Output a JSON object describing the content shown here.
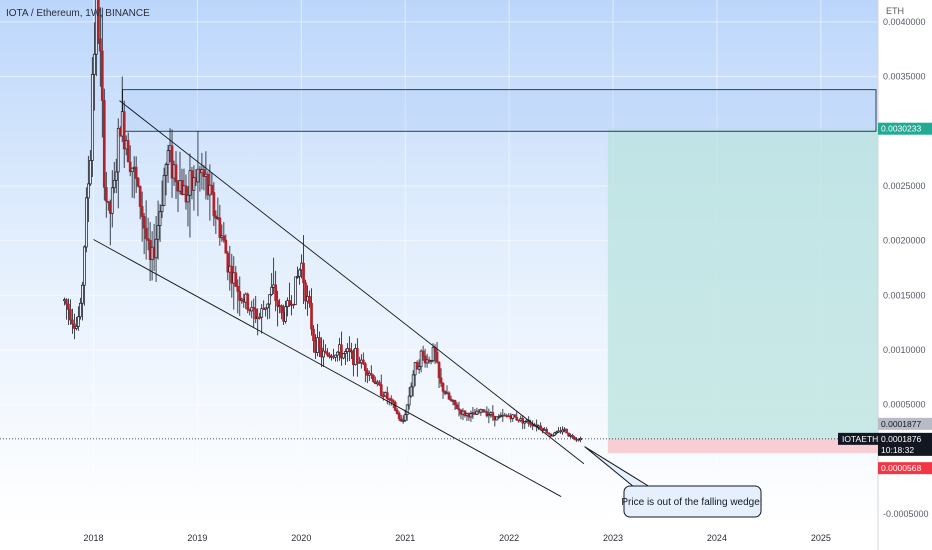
{
  "chart_data": {
    "type": "candlestick",
    "title": "IOTA / Ethereum, 1W, BINANCE",
    "currency": "ETH",
    "symbol": "IOTAETH",
    "ylim": [
      -0.0006,
      0.0042
    ],
    "y_ticks": [
      "0.0040000",
      "0.0035000",
      "0.0025000",
      "0.0020000",
      "0.0015000",
      "0.0010000",
      "0.0005000",
      "-0.0005000"
    ],
    "y_tick_values": [
      0.004,
      0.0035,
      0.0025,
      0.002,
      0.0015,
      0.001,
      0.0005,
      -0.0005
    ],
    "x_ticks": [
      "2018",
      "2019",
      "2020",
      "2021",
      "2022",
      "2023",
      "2024",
      "2025"
    ],
    "x_tick_years": [
      2018,
      2019,
      2020,
      2021,
      2022,
      2023,
      2024,
      2025
    ],
    "xlim_years": [
      2017.1,
      2025.55
    ],
    "price_tags": {
      "target": "0.0030233",
      "last_close": "0.0001877",
      "current": "0.0001876",
      "countdown": "10:18:32",
      "stop": "0.0000568"
    },
    "price_tag_values": {
      "target": 0.0030233,
      "last_close": 0.0001877,
      "current": 0.0001876,
      "stop": 5.68e-05
    },
    "annotation": "Price is out of the falling wedge!",
    "trendlines": [
      {
        "name": "wedge-upper",
        "from": [
          2018.25,
          0.00328
        ],
        "to": [
          2022.72,
          -4e-05
        ]
      },
      {
        "name": "wedge-lower",
        "from": [
          2018.0,
          0.00201
        ],
        "to": [
          2022.5,
          -0.00034
        ]
      }
    ],
    "resistance_zone": {
      "from_year": 2018.28,
      "to_year": 2025.55,
      "low": 0.003,
      "high": 0.00338
    },
    "position": {
      "from_year": 2022.95,
      "to_year": 2025.55,
      "entry": 0.0001877,
      "target": 0.0030233,
      "stop": 5.68e-05
    },
    "series_anchors": [
      [
        2017.72,
        0.00145
      ],
      [
        2017.78,
        0.00135
      ],
      [
        2017.83,
        0.0012
      ],
      [
        2017.88,
        0.0014
      ],
      [
        2017.93,
        0.0023
      ],
      [
        2017.97,
        0.0028
      ],
      [
        2017.99,
        0.0036
      ],
      [
        2018.03,
        0.0041
      ],
      [
        2018.06,
        0.0038
      ],
      [
        2018.08,
        0.0032
      ],
      [
        2018.1,
        0.0027
      ],
      [
        2018.12,
        0.0024
      ],
      [
        2018.15,
        0.0022
      ],
      [
        2018.2,
        0.0025
      ],
      [
        2018.26,
        0.0031
      ],
      [
        2018.33,
        0.0029
      ],
      [
        2018.38,
        0.00265
      ],
      [
        2018.46,
        0.0023
      ],
      [
        2018.55,
        0.00175
      ],
      [
        2018.63,
        0.0022
      ],
      [
        2018.68,
        0.0026
      ],
      [
        2018.72,
        0.0028
      ],
      [
        2018.8,
        0.0026
      ],
      [
        2018.9,
        0.0024
      ],
      [
        2019.0,
        0.0026
      ],
      [
        2019.05,
        0.0026
      ],
      [
        2019.12,
        0.0024
      ],
      [
        2019.22,
        0.0021
      ],
      [
        2019.32,
        0.0017
      ],
      [
        2019.42,
        0.0015
      ],
      [
        2019.52,
        0.00135
      ],
      [
        2019.6,
        0.0013
      ],
      [
        2019.72,
        0.00155
      ],
      [
        2019.82,
        0.0013
      ],
      [
        2019.92,
        0.0015
      ],
      [
        2020.0,
        0.0018
      ],
      [
        2020.05,
        0.0015
      ],
      [
        2020.12,
        0.0011
      ],
      [
        2020.2,
        0.00095
      ],
      [
        2020.35,
        0.00098
      ],
      [
        2020.5,
        0.00095
      ],
      [
        2020.62,
        0.00085
      ],
      [
        2020.75,
        0.00065
      ],
      [
        2020.88,
        0.0005
      ],
      [
        2020.97,
        0.00032
      ],
      [
        2021.02,
        0.0005
      ],
      [
        2021.08,
        0.0008
      ],
      [
        2021.15,
        0.00095
      ],
      [
        2021.22,
        0.0009
      ],
      [
        2021.28,
        0.001
      ],
      [
        2021.33,
        0.0007
      ],
      [
        2021.42,
        0.00055
      ],
      [
        2021.55,
        0.00042
      ],
      [
        2021.65,
        0.0004
      ],
      [
        2021.75,
        0.00045
      ],
      [
        2021.88,
        0.00038
      ],
      [
        2022.0,
        0.0004
      ],
      [
        2022.15,
        0.00035
      ],
      [
        2022.3,
        0.0003
      ],
      [
        2022.4,
        0.00022
      ],
      [
        2022.48,
        0.00025
      ],
      [
        2022.52,
        0.00028
      ],
      [
        2022.58,
        0.00022
      ],
      [
        2022.65,
        0.00019
      ],
      [
        2022.7,
        0.000188
      ]
    ]
  }
}
